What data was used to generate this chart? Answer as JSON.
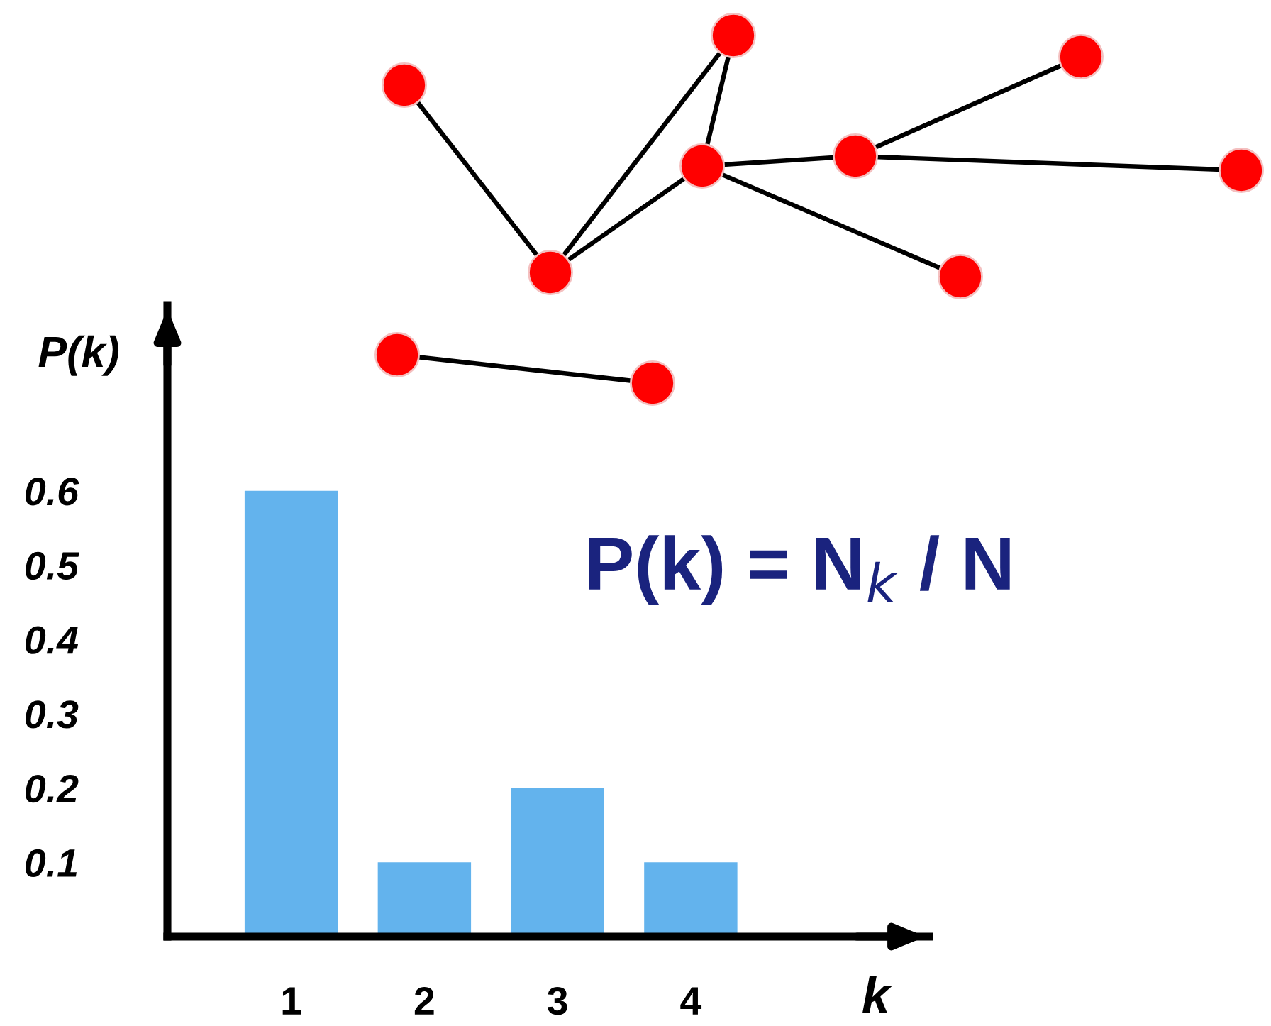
{
  "chart_data": {
    "type": "bar",
    "categories": [
      "1",
      "2",
      "3",
      "4"
    ],
    "values": [
      0.6,
      0.1,
      0.2,
      0.1
    ],
    "color": "#63b3ed",
    "xlabel": "k",
    "ylabel": "P(k)",
    "ylim": [
      0,
      0.85
    ],
    "yticks": [
      0.1,
      0.2,
      0.3,
      0.4,
      0.5,
      0.6
    ],
    "annotations": [
      "P(k) = N$_{k}$ / N"
    ],
    "grid": false,
    "legend": false
  }
}
